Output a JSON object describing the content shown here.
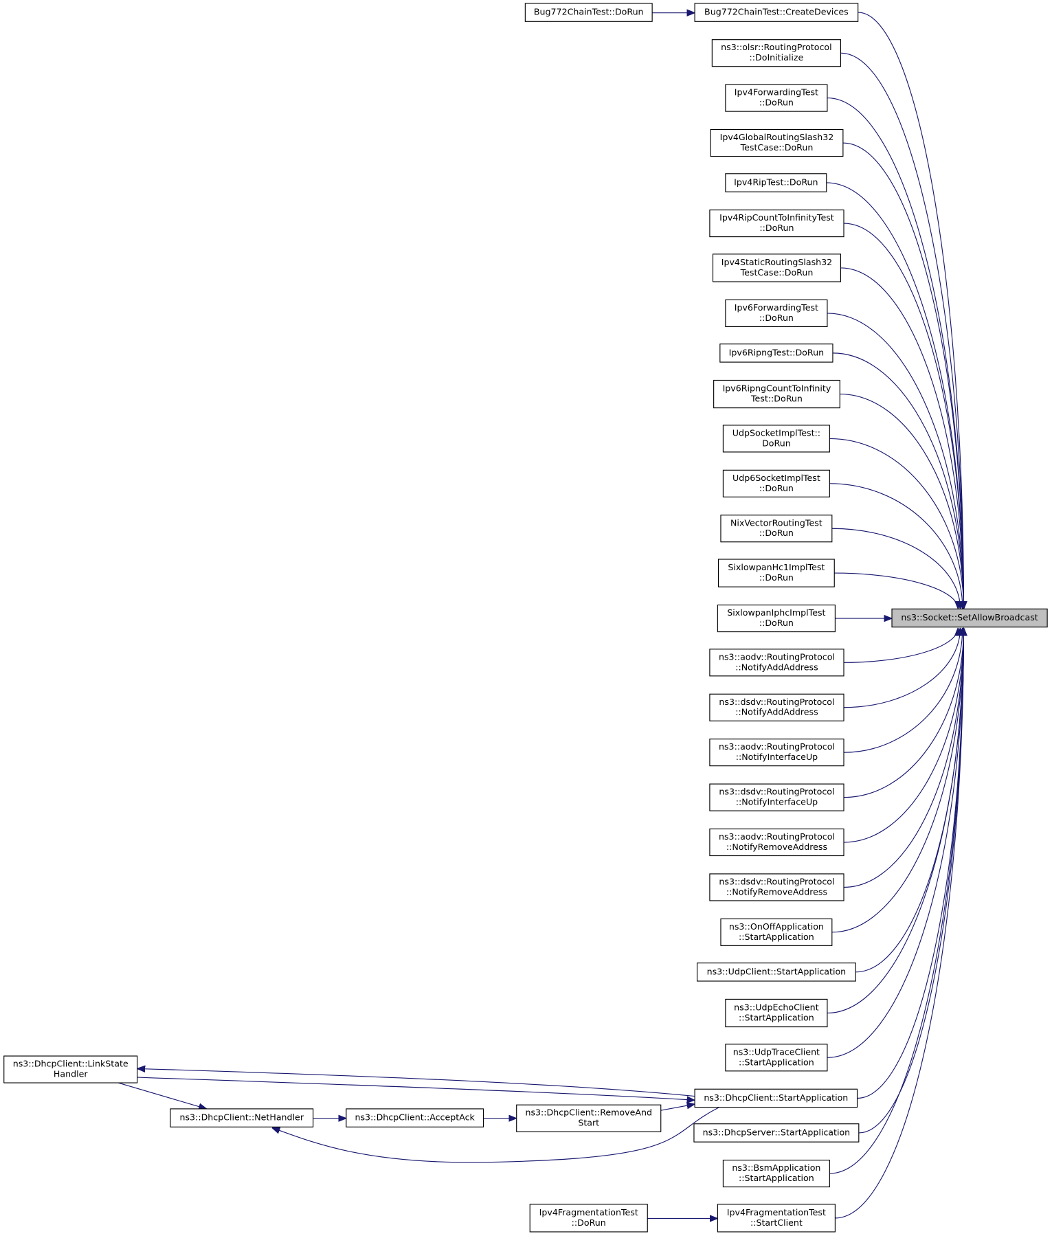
{
  "nodes": [
    {
      "lines": [
        "ns3::Socket::SetAllowBroadcast"
      ]
    },
    {
      "lines": [
        "Bug772ChainTest::CreateDevices"
      ]
    },
    {
      "lines": [
        "ns3::olsr::RoutingProtocol",
        "::DoInitialize"
      ]
    },
    {
      "lines": [
        "Ipv4ForwardingTest",
        "::DoRun"
      ]
    },
    {
      "lines": [
        "Ipv4GlobalRoutingSlash32",
        "TestCase::DoRun"
      ]
    },
    {
      "lines": [
        "Ipv4RipTest::DoRun"
      ]
    },
    {
      "lines": [
        "Ipv4RipCountToInfinityTest",
        "::DoRun"
      ]
    },
    {
      "lines": [
        "Ipv4StaticRoutingSlash32",
        "TestCase::DoRun"
      ]
    },
    {
      "lines": [
        "Ipv6ForwardingTest",
        "::DoRun"
      ]
    },
    {
      "lines": [
        "Ipv6RipngTest::DoRun"
      ]
    },
    {
      "lines": [
        "Ipv6RipngCountToInfinity",
        "Test::DoRun"
      ]
    },
    {
      "lines": [
        "UdpSocketImplTest::",
        "DoRun"
      ]
    },
    {
      "lines": [
        "Udp6SocketImplTest",
        "::DoRun"
      ]
    },
    {
      "lines": [
        "NixVectorRoutingTest",
        "::DoRun"
      ]
    },
    {
      "lines": [
        "SixlowpanHc1ImplTest",
        "::DoRun"
      ]
    },
    {
      "lines": [
        "SixlowpanIphcImplTest",
        "::DoRun"
      ]
    },
    {
      "lines": [
        "ns3::aodv::RoutingProtocol",
        "::NotifyAddAddress"
      ]
    },
    {
      "lines": [
        "ns3::dsdv::RoutingProtocol",
        "::NotifyAddAddress"
      ]
    },
    {
      "lines": [
        "ns3::aodv::RoutingProtocol",
        "::NotifyInterfaceUp"
      ]
    },
    {
      "lines": [
        "ns3::dsdv::RoutingProtocol",
        "::NotifyInterfaceUp"
      ]
    },
    {
      "lines": [
        "ns3::aodv::RoutingProtocol",
        "::NotifyRemoveAddress"
      ]
    },
    {
      "lines": [
        "ns3::dsdv::RoutingProtocol",
        "::NotifyRemoveAddress"
      ]
    },
    {
      "lines": [
        "ns3::OnOffApplication",
        "::StartApplication"
      ]
    },
    {
      "lines": [
        "ns3::UdpClient::StartApplication"
      ]
    },
    {
      "lines": [
        "ns3::UdpEchoClient",
        "::StartApplication"
      ]
    },
    {
      "lines": [
        "ns3::UdpTraceClient",
        "::StartApplication"
      ]
    },
    {
      "lines": [
        "ns3::DhcpClient::StartApplication"
      ]
    },
    {
      "lines": [
        "ns3::DhcpServer::StartApplication"
      ]
    },
    {
      "lines": [
        "ns3::BsmApplication",
        "::StartApplication"
      ]
    },
    {
      "lines": [
        "Ipv4FragmentationTest",
        "::StartClient"
      ]
    },
    {
      "lines": [
        "Bug772ChainTest::DoRun"
      ]
    },
    {
      "lines": [
        "ns3::DhcpClient::LinkState",
        "Handler"
      ]
    },
    {
      "lines": [
        "ns3::DhcpClient::NetHandler"
      ]
    },
    {
      "lines": [
        "ns3::DhcpClient::AcceptAck"
      ]
    },
    {
      "lines": [
        "ns3::DhcpClient::RemoveAnd",
        "Start"
      ]
    },
    {
      "lines": [
        "Ipv4FragmentationTest",
        "::DoRun"
      ]
    }
  ]
}
